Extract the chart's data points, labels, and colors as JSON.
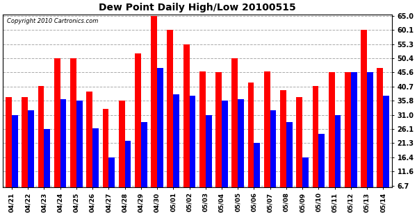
{
  "title": "Dew Point Daily High/Low 20100515",
  "copyright": "Copyright 2010 Cartronics.com",
  "dates": [
    "04/21",
    "04/22",
    "04/23",
    "04/24",
    "04/25",
    "04/26",
    "04/27",
    "04/28",
    "04/29",
    "04/30",
    "05/01",
    "05/02",
    "05/03",
    "05/04",
    "05/05",
    "05/06",
    "05/07",
    "05/08",
    "05/09",
    "05/10",
    "05/11",
    "05/12",
    "05/13",
    "05/14"
  ],
  "highs": [
    37.0,
    37.0,
    41.0,
    50.4,
    50.4,
    39.0,
    33.0,
    35.8,
    52.0,
    65.0,
    60.1,
    55.3,
    46.0,
    45.6,
    50.4,
    42.0,
    46.0,
    39.5,
    37.0,
    41.0,
    45.6,
    45.6,
    60.1,
    47.0
  ],
  "lows": [
    31.0,
    32.5,
    26.1,
    36.5,
    35.8,
    26.5,
    16.4,
    22.0,
    28.5,
    47.0,
    38.0,
    37.5,
    31.0,
    35.8,
    36.5,
    21.3,
    32.5,
    28.5,
    16.4,
    24.5,
    31.0,
    45.6,
    45.6,
    37.5
  ],
  "high_color": "#ff0000",
  "low_color": "#0000ff",
  "bg_color": "#ffffff",
  "grid_color": "#aaaaaa",
  "yticks": [
    6.7,
    11.6,
    16.4,
    21.3,
    26.1,
    31.0,
    35.8,
    40.7,
    45.6,
    50.4,
    55.3,
    60.1,
    65.0
  ],
  "ymin": 6.7,
  "ymax": 65.0,
  "bar_width": 0.38
}
